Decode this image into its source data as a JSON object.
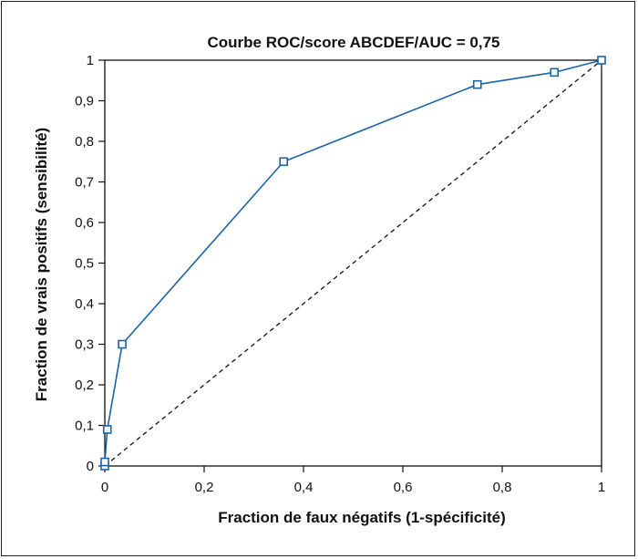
{
  "chart_data": {
    "type": "line",
    "title": "Courbe ROC/score ABCDEF/AUC = 0,75",
    "xlabel": "Fraction de faux négatifs (1-spécificité)",
    "ylabel": "Fraction de vrais positifs (sensibilité)",
    "xlim": [
      0,
      1
    ],
    "ylim": [
      0,
      1
    ],
    "x_ticks": [
      "0",
      "0,2",
      "0,4",
      "0,6",
      "0,8",
      "1"
    ],
    "y_ticks": [
      "0",
      "0,1",
      "0,2",
      "0,3",
      "0,4",
      "0,5",
      "0,6",
      "0,7",
      "0,8",
      "0,9",
      "1"
    ],
    "grid": false,
    "series": [
      {
        "color": "#1a63a8",
        "marker": "square",
        "points": [
          [
            0,
            0
          ],
          [
            0,
            0.01
          ],
          [
            0.005,
            0.09
          ],
          [
            0.035,
            0.3
          ],
          [
            0.36,
            0.75
          ],
          [
            0.75,
            0.94
          ],
          [
            0.905,
            0.97
          ],
          [
            1,
            1
          ]
        ]
      }
    ],
    "reference_line": {
      "style": "dashed",
      "color": "#111111",
      "from": [
        0,
        0
      ],
      "to": [
        1,
        1
      ]
    }
  }
}
